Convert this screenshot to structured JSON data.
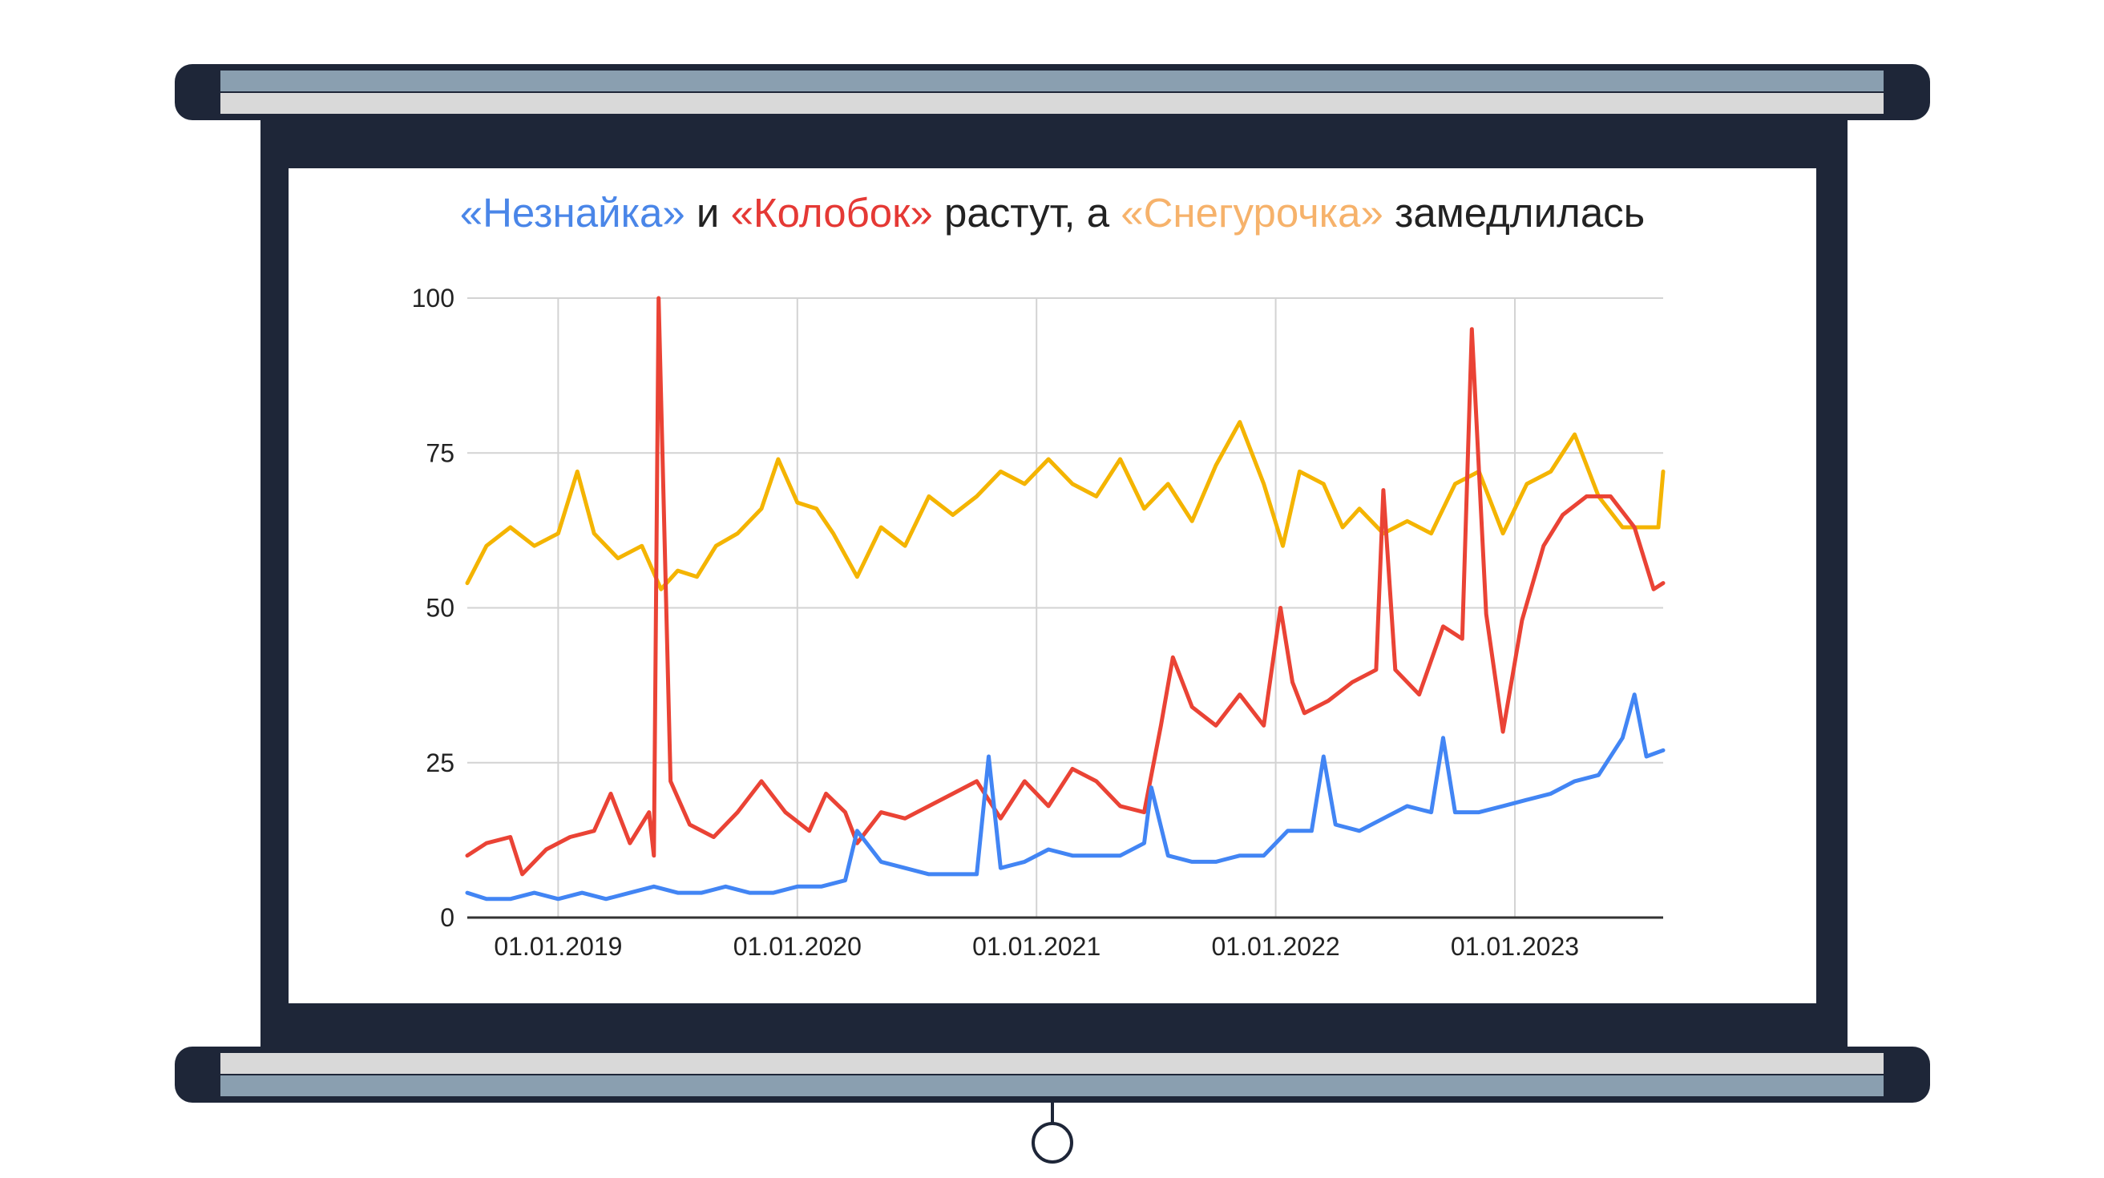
{
  "title": {
    "parts": [
      {
        "text": "«Незнайка»",
        "color": "#4a86e8"
      },
      {
        "text": " и ",
        "color": "#222222"
      },
      {
        "text": "«Колобок»",
        "color": "#e53935"
      },
      {
        "text": " растут, а ",
        "color": "#222222"
      },
      {
        "text": "«Снегурочка»",
        "color": "#f6b26b"
      },
      {
        "text": " замедлилась",
        "color": "#222222"
      }
    ]
  },
  "colors": {
    "screen_frame": "#1e2638",
    "roller_body": "#1e2638",
    "roller_band_top": "#8a9fb0",
    "roller_band_light": "#d9d9d9",
    "gridline": "#d3d3d3",
    "axis": "#333333"
  },
  "chart_data": {
    "type": "line",
    "title": "«Незнайка» и «Колобок» растут, а «Снегурочка» замедлилась",
    "xlabel": "",
    "ylabel": "",
    "x_ticks": [
      "01.01.2019",
      "01.01.2020",
      "01.01.2021",
      "01.01.2022",
      "01.01.2023"
    ],
    "y_ticks": [
      0,
      25,
      50,
      75,
      100
    ],
    "ylim": [
      0,
      100
    ],
    "xlim": [
      2018.62,
      2023.62
    ],
    "grid": true,
    "legend": "none",
    "series": [
      {
        "color": "#f4b400",
        "points": [
          [
            2018.62,
            54
          ],
          [
            2018.7,
            60
          ],
          [
            2018.8,
            63
          ],
          [
            2018.9,
            60
          ],
          [
            2019.0,
            62
          ],
          [
            2019.08,
            72
          ],
          [
            2019.15,
            62
          ],
          [
            2019.25,
            58
          ],
          [
            2019.35,
            60
          ],
          [
            2019.43,
            53
          ],
          [
            2019.5,
            56
          ],
          [
            2019.58,
            55
          ],
          [
            2019.66,
            60
          ],
          [
            2019.75,
            62
          ],
          [
            2019.85,
            66
          ],
          [
            2019.92,
            74
          ],
          [
            2020.0,
            67
          ],
          [
            2020.08,
            66
          ],
          [
            2020.15,
            62
          ],
          [
            2020.25,
            55
          ],
          [
            2020.35,
            63
          ],
          [
            2020.45,
            60
          ],
          [
            2020.55,
            68
          ],
          [
            2020.65,
            65
          ],
          [
            2020.75,
            68
          ],
          [
            2020.85,
            72
          ],
          [
            2020.95,
            70
          ],
          [
            2021.05,
            74
          ],
          [
            2021.15,
            70
          ],
          [
            2021.25,
            68
          ],
          [
            2021.35,
            74
          ],
          [
            2021.45,
            66
          ],
          [
            2021.55,
            70
          ],
          [
            2021.65,
            64
          ],
          [
            2021.75,
            73
          ],
          [
            2021.85,
            80
          ],
          [
            2021.95,
            70
          ],
          [
            2022.03,
            60
          ],
          [
            2022.1,
            72
          ],
          [
            2022.2,
            70
          ],
          [
            2022.28,
            63
          ],
          [
            2022.35,
            66
          ],
          [
            2022.45,
            62
          ],
          [
            2022.55,
            64
          ],
          [
            2022.65,
            62
          ],
          [
            2022.75,
            70
          ],
          [
            2022.85,
            72
          ],
          [
            2022.95,
            62
          ],
          [
            2023.05,
            70
          ],
          [
            2023.15,
            72
          ],
          [
            2023.25,
            78
          ],
          [
            2023.35,
            68
          ],
          [
            2023.45,
            63
          ],
          [
            2023.55,
            63
          ],
          [
            2023.6,
            63
          ],
          [
            2023.62,
            72
          ]
        ]
      },
      {
        "color": "#ea4335",
        "points": [
          [
            2018.62,
            10
          ],
          [
            2018.7,
            12
          ],
          [
            2018.8,
            13
          ],
          [
            2018.85,
            7
          ],
          [
            2018.95,
            11
          ],
          [
            2019.05,
            13
          ],
          [
            2019.15,
            14
          ],
          [
            2019.22,
            20
          ],
          [
            2019.3,
            12
          ],
          [
            2019.38,
            17
          ],
          [
            2019.4,
            10
          ],
          [
            2019.42,
            100
          ],
          [
            2019.47,
            22
          ],
          [
            2019.55,
            15
          ],
          [
            2019.65,
            13
          ],
          [
            2019.75,
            17
          ],
          [
            2019.85,
            22
          ],
          [
            2019.95,
            17
          ],
          [
            2020.05,
            14
          ],
          [
            2020.12,
            20
          ],
          [
            2020.2,
            17
          ],
          [
            2020.25,
            12
          ],
          [
            2020.35,
            17
          ],
          [
            2020.45,
            16
          ],
          [
            2020.55,
            18
          ],
          [
            2020.65,
            20
          ],
          [
            2020.75,
            22
          ],
          [
            2020.85,
            16
          ],
          [
            2020.95,
            22
          ],
          [
            2021.05,
            18
          ],
          [
            2021.15,
            24
          ],
          [
            2021.25,
            22
          ],
          [
            2021.35,
            18
          ],
          [
            2021.45,
            17
          ],
          [
            2021.52,
            31
          ],
          [
            2021.57,
            42
          ],
          [
            2021.65,
            34
          ],
          [
            2021.75,
            31
          ],
          [
            2021.85,
            36
          ],
          [
            2021.95,
            31
          ],
          [
            2022.02,
            50
          ],
          [
            2022.07,
            38
          ],
          [
            2022.12,
            33
          ],
          [
            2022.22,
            35
          ],
          [
            2022.32,
            38
          ],
          [
            2022.42,
            40
          ],
          [
            2022.45,
            69
          ],
          [
            2022.5,
            40
          ],
          [
            2022.6,
            36
          ],
          [
            2022.7,
            47
          ],
          [
            2022.78,
            45
          ],
          [
            2022.82,
            95
          ],
          [
            2022.88,
            49
          ],
          [
            2022.95,
            30
          ],
          [
            2023.03,
            48
          ],
          [
            2023.12,
            60
          ],
          [
            2023.2,
            65
          ],
          [
            2023.3,
            68
          ],
          [
            2023.4,
            68
          ],
          [
            2023.5,
            63
          ],
          [
            2023.58,
            53
          ],
          [
            2023.62,
            54
          ]
        ]
      },
      {
        "color": "#4285f4",
        "points": [
          [
            2018.62,
            4
          ],
          [
            2018.7,
            3
          ],
          [
            2018.8,
            3
          ],
          [
            2018.9,
            4
          ],
          [
            2019.0,
            3
          ],
          [
            2019.1,
            4
          ],
          [
            2019.2,
            3
          ],
          [
            2019.3,
            4
          ],
          [
            2019.4,
            5
          ],
          [
            2019.5,
            4
          ],
          [
            2019.6,
            4
          ],
          [
            2019.7,
            5
          ],
          [
            2019.8,
            4
          ],
          [
            2019.9,
            4
          ],
          [
            2020.0,
            5
          ],
          [
            2020.1,
            5
          ],
          [
            2020.2,
            6
          ],
          [
            2020.25,
            14
          ],
          [
            2020.35,
            9
          ],
          [
            2020.45,
            8
          ],
          [
            2020.55,
            7
          ],
          [
            2020.65,
            7
          ],
          [
            2020.75,
            7
          ],
          [
            2020.8,
            26
          ],
          [
            2020.85,
            8
          ],
          [
            2020.95,
            9
          ],
          [
            2021.05,
            11
          ],
          [
            2021.15,
            10
          ],
          [
            2021.25,
            10
          ],
          [
            2021.35,
            10
          ],
          [
            2021.45,
            12
          ],
          [
            2021.48,
            21
          ],
          [
            2021.55,
            10
          ],
          [
            2021.65,
            9
          ],
          [
            2021.75,
            9
          ],
          [
            2021.85,
            10
          ],
          [
            2021.95,
            10
          ],
          [
            2022.05,
            14
          ],
          [
            2022.15,
            14
          ],
          [
            2022.2,
            26
          ],
          [
            2022.25,
            15
          ],
          [
            2022.35,
            14
          ],
          [
            2022.45,
            16
          ],
          [
            2022.55,
            18
          ],
          [
            2022.65,
            17
          ],
          [
            2022.7,
            29
          ],
          [
            2022.75,
            17
          ],
          [
            2022.85,
            17
          ],
          [
            2022.95,
            18
          ],
          [
            2023.05,
            19
          ],
          [
            2023.15,
            20
          ],
          [
            2023.25,
            22
          ],
          [
            2023.35,
            23
          ],
          [
            2023.45,
            29
          ],
          [
            2023.5,
            36
          ],
          [
            2023.55,
            26
          ],
          [
            2023.62,
            27
          ]
        ]
      }
    ]
  }
}
